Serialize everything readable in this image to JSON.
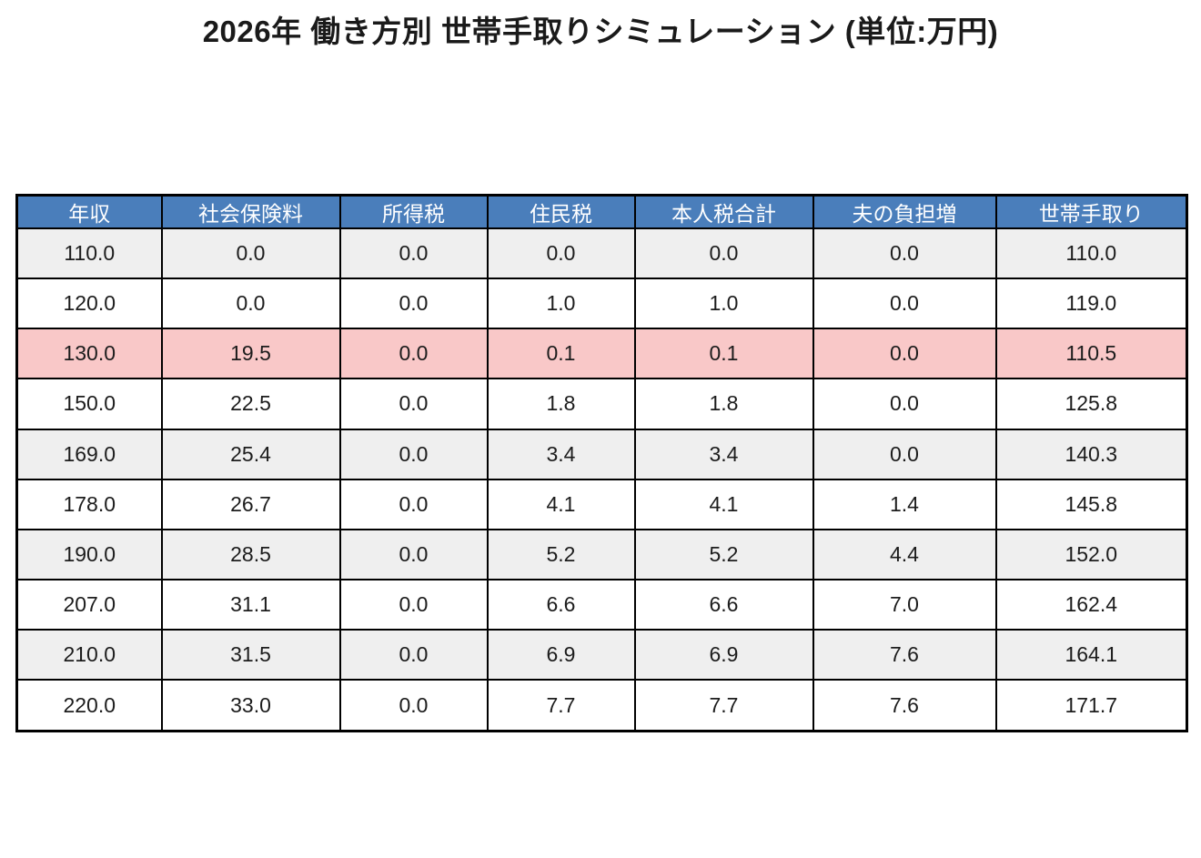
{
  "title": "2026年 働き方別 世帯手取りシミュレーション (単位:万円)",
  "unit_note": "単位:万円",
  "colors": {
    "header_bg": "#4a7ebb",
    "header_text": "#ffffff",
    "row_bg": "#ffffff",
    "row_alt_bg": "#efefef",
    "highlight_bg": "#f9c8c8",
    "border": "#000000",
    "cell_text": "#1c1c1c"
  },
  "table": {
    "columns": [
      "年収",
      "社会保険料",
      "所得税",
      "住民税",
      "本人税合計",
      "夫の負担増",
      "世帯手取り"
    ],
    "rows": [
      {
        "values": [
          "110.0",
          "0.0",
          "0.0",
          "0.0",
          "0.0",
          "0.0",
          "110.0"
        ],
        "highlight": false
      },
      {
        "values": [
          "120.0",
          "0.0",
          "0.0",
          "1.0",
          "1.0",
          "0.0",
          "119.0"
        ],
        "highlight": false
      },
      {
        "values": [
          "130.0",
          "19.5",
          "0.0",
          "0.1",
          "0.1",
          "0.0",
          "110.5"
        ],
        "highlight": true
      },
      {
        "values": [
          "150.0",
          "22.5",
          "0.0",
          "1.8",
          "1.8",
          "0.0",
          "125.8"
        ],
        "highlight": false
      },
      {
        "values": [
          "169.0",
          "25.4",
          "0.0",
          "3.4",
          "3.4",
          "0.0",
          "140.3"
        ],
        "highlight": false
      },
      {
        "values": [
          "178.0",
          "26.7",
          "0.0",
          "4.1",
          "4.1",
          "1.4",
          "145.8"
        ],
        "highlight": false
      },
      {
        "values": [
          "190.0",
          "28.5",
          "0.0",
          "5.2",
          "5.2",
          "4.4",
          "152.0"
        ],
        "highlight": false
      },
      {
        "values": [
          "207.0",
          "31.1",
          "0.0",
          "6.6",
          "6.6",
          "7.0",
          "162.4"
        ],
        "highlight": false
      },
      {
        "values": [
          "210.0",
          "31.5",
          "0.0",
          "6.9",
          "6.9",
          "7.6",
          "164.1"
        ],
        "highlight": false
      },
      {
        "values": [
          "220.0",
          "33.0",
          "0.0",
          "7.7",
          "7.7",
          "7.6",
          "171.7"
        ],
        "highlight": false
      }
    ]
  },
  "chart_data": {
    "type": "table",
    "title": "2026年 働き方別 世帯手取りシミュレーション (単位:万円)",
    "columns": [
      "年収",
      "社会保険料",
      "所得税",
      "住民税",
      "本人税合計",
      "夫の負担増",
      "世帯手取り"
    ],
    "rows": [
      [
        110.0,
        0.0,
        0.0,
        0.0,
        0.0,
        0.0,
        110.0
      ],
      [
        120.0,
        0.0,
        0.0,
        1.0,
        1.0,
        0.0,
        119.0
      ],
      [
        130.0,
        19.5,
        0.0,
        0.1,
        0.1,
        0.0,
        110.5
      ],
      [
        150.0,
        22.5,
        0.0,
        1.8,
        1.8,
        0.0,
        125.8
      ],
      [
        169.0,
        25.4,
        0.0,
        3.4,
        3.4,
        0.0,
        140.3
      ],
      [
        178.0,
        26.7,
        0.0,
        4.1,
        4.1,
        1.4,
        145.8
      ],
      [
        190.0,
        28.5,
        0.0,
        5.2,
        5.2,
        4.4,
        152.0
      ],
      [
        207.0,
        31.1,
        0.0,
        6.6,
        6.6,
        7.0,
        162.4
      ],
      [
        210.0,
        31.5,
        0.0,
        6.9,
        6.9,
        7.6,
        164.1
      ],
      [
        220.0,
        33.0,
        0.0,
        7.7,
        7.7,
        7.6,
        171.7
      ]
    ],
    "highlighted_row_index": 2,
    "unit": "万円",
    "legend_position": "none",
    "grid": true
  }
}
